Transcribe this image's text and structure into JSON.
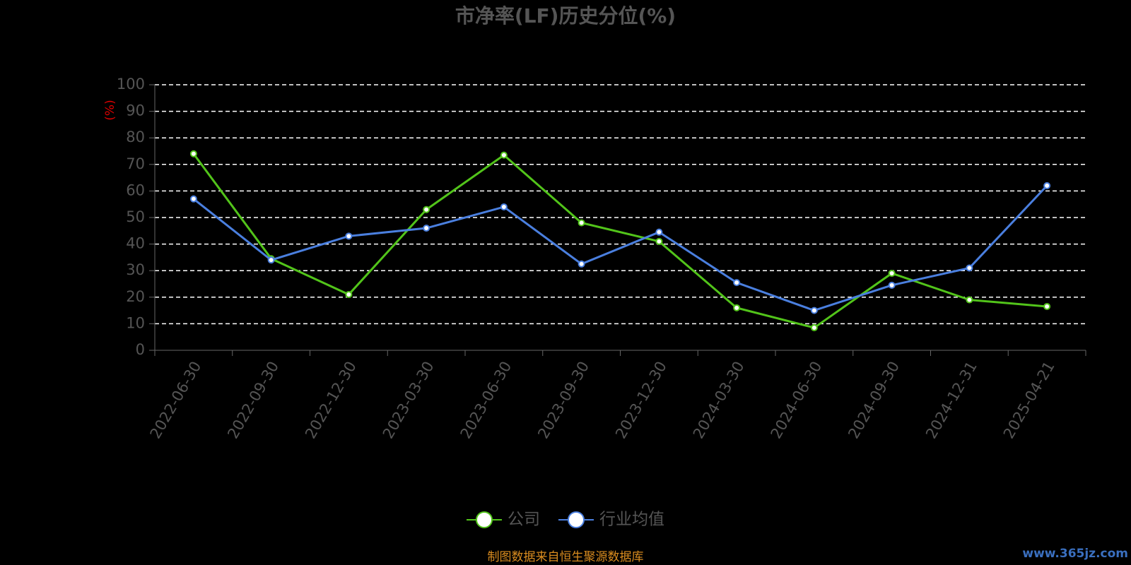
{
  "chart_data": {
    "type": "line",
    "title": "市净率(LF)历史分位(%)",
    "y_label": "(%)",
    "categories": [
      "2022-06-30",
      "2022-09-30",
      "2022-12-30",
      "2023-03-30",
      "2023-06-30",
      "2023-09-30",
      "2023-12-30",
      "2024-03-30",
      "2024-06-30",
      "2024-09-30",
      "2024-12-31",
      "2025-04-21"
    ],
    "series": [
      {
        "name": "公司",
        "color": "#52c41a",
        "values": [
          74,
          34.5,
          21,
          53,
          73.5,
          48,
          41,
          16,
          8.5,
          29,
          19,
          16.5
        ]
      },
      {
        "name": "行业均值",
        "color": "#4a7fdf",
        "values": [
          57,
          34,
          43,
          46,
          54,
          32.5,
          44.5,
          25.5,
          15,
          24.5,
          31,
          62
        ]
      }
    ],
    "ylim": [
      0,
      100
    ],
    "yticks": [
      0,
      10,
      20,
      30,
      40,
      50,
      60,
      70,
      80,
      90,
      100
    ],
    "grid": true,
    "legend": "bottom",
    "source": "制图数据来自恒生聚源数据库",
    "watermark": "www.365jz.com"
  }
}
